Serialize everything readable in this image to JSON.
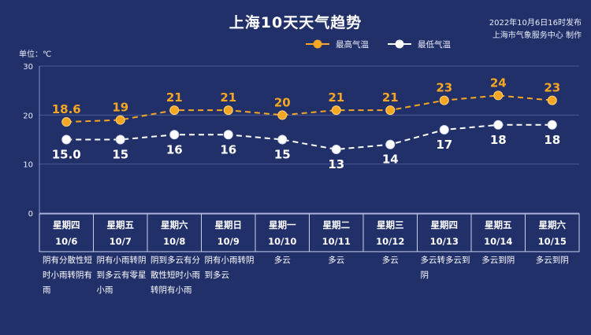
{
  "chart_data": {
    "type": "line",
    "title": "上海10天天气趋势",
    "publish_time": "2022年10月6日16时发布",
    "publisher": "上海市气象服务中心 制作",
    "unit": "单位：℃",
    "ylim": [
      0,
      30
    ],
    "yticks": [
      "0",
      "10",
      "20",
      "30"
    ],
    "grid": true,
    "legend_position": "top-right",
    "categories": [
      {
        "weekday": "星期四",
        "date": "10/6"
      },
      {
        "weekday": "星期五",
        "date": "10/7"
      },
      {
        "weekday": "星期六",
        "date": "10/8"
      },
      {
        "weekday": "星期日",
        "date": "10/9"
      },
      {
        "weekday": "星期一",
        "date": "10/10"
      },
      {
        "weekday": "星期二",
        "date": "10/11"
      },
      {
        "weekday": "星期三",
        "date": "10/12"
      },
      {
        "weekday": "星期四",
        "date": "10/13"
      },
      {
        "weekday": "星期五",
        "date": "10/14"
      },
      {
        "weekday": "星期六",
        "date": "10/15"
      }
    ],
    "series": [
      {
        "name": "最高气温",
        "color": "#f5a623",
        "values": [
          18.6,
          19,
          21,
          21,
          20,
          21,
          21,
          23,
          24,
          23
        ],
        "labels": [
          "18.6",
          "19",
          "21",
          "21",
          "20",
          "21",
          "21",
          "23",
          "24",
          "23"
        ]
      },
      {
        "name": "最低气温",
        "color": "#ffffff",
        "values": [
          15.0,
          15,
          16,
          16,
          15,
          13,
          14,
          17,
          18,
          18
        ],
        "labels": [
          "15.0",
          "15",
          "16",
          "16",
          "15",
          "13",
          "14",
          "17",
          "18",
          "18"
        ]
      }
    ],
    "weather": [
      "阴有分散性短时小雨转阴有雨",
      "阴有小雨转阴到多云有零星小雨",
      "阴到多云有分散性短时小雨转阴有小雨",
      "阴有小雨转阴到多云",
      "多云",
      "多云",
      "多云",
      "多云转多云到阴",
      "多云到阴",
      "多云到阴"
    ]
  },
  "colors": {
    "background": "#22306a",
    "max_line": "#f5a623",
    "min_line": "#ffffff",
    "grid": "#4a5a94"
  }
}
